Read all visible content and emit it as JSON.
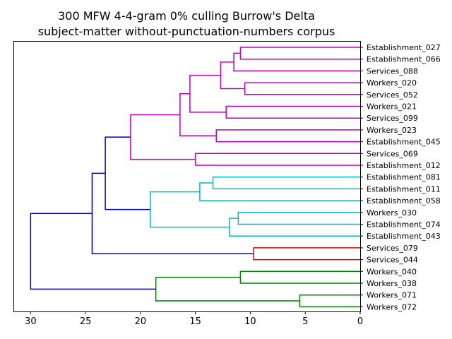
{
  "chart_data": {
    "type": "dendrogram",
    "title": "300 MFW 4-4-gram 0% culling Burrow's Delta",
    "subtitle": "subject-matter without-punctuation-numbers corpus",
    "xlim": [
      31.5,
      0
    ],
    "xticks": [
      30,
      25,
      20,
      15,
      10,
      5,
      0
    ],
    "leaves": [
      "Establishment_027",
      "Establishment_066",
      "Services_088",
      "Workers_020",
      "Services_052",
      "Workers_021",
      "Services_099",
      "Workers_023",
      "Establishment_045",
      "Services_069",
      "Establishment_012",
      "Establishment_081",
      "Establishment_011",
      "Establishment_058",
      "Workers_030",
      "Establishment_074",
      "Establishment_043",
      "Services_079",
      "Services_044",
      "Workers_040",
      "Workers_038",
      "Workers_071",
      "Workers_072"
    ],
    "colors": {
      "magenta": "#bf00bf",
      "cyan": "#00bfbf",
      "red": "#e00000",
      "green": "#008000",
      "blue": "#0000cc"
    },
    "merges": [
      {
        "a": "L0",
        "b": "L1",
        "height": 10.9,
        "color": "magenta"
      },
      {
        "a": "M0",
        "b": "L2",
        "height": 11.5,
        "color": "magenta"
      },
      {
        "a": "L3",
        "b": "L4",
        "height": 10.5,
        "color": "magenta"
      },
      {
        "a": "M1",
        "b": "M2",
        "height": 12.7,
        "color": "magenta"
      },
      {
        "a": "L5",
        "b": "L6",
        "height": 12.2,
        "color": "magenta"
      },
      {
        "a": "M3",
        "b": "M4",
        "height": 15.5,
        "color": "magenta"
      },
      {
        "a": "L7",
        "b": "L8",
        "height": 13.1,
        "color": "magenta"
      },
      {
        "a": "M5",
        "b": "M6",
        "height": 16.4,
        "color": "magenta"
      },
      {
        "a": "L9",
        "b": "L10",
        "height": 15.0,
        "color": "magenta"
      },
      {
        "a": "M7",
        "b": "M8",
        "height": 20.9,
        "color": "magenta"
      },
      {
        "a": "L11",
        "b": "L12",
        "height": 13.4,
        "color": "cyan"
      },
      {
        "a": "M10",
        "b": "L13",
        "height": 14.6,
        "color": "cyan"
      },
      {
        "a": "L14",
        "b": "L15",
        "height": 11.1,
        "color": "cyan"
      },
      {
        "a": "M12",
        "b": "L16",
        "height": 11.9,
        "color": "cyan"
      },
      {
        "a": "M11",
        "b": "M13",
        "height": 19.1,
        "color": "cyan"
      },
      {
        "a": "M9",
        "b": "M14",
        "height": 23.2,
        "color": "blue"
      },
      {
        "a": "L17",
        "b": "L18",
        "height": 9.7,
        "color": "red"
      },
      {
        "a": "M15",
        "b": "M16",
        "height": 24.4,
        "color": "blue"
      },
      {
        "a": "L19",
        "b": "L20",
        "height": 10.9,
        "color": "green"
      },
      {
        "a": "L21",
        "b": "L22",
        "height": 5.5,
        "color": "green"
      },
      {
        "a": "M18",
        "b": "M19",
        "height": 18.6,
        "color": "green"
      },
      {
        "a": "M17",
        "b": "M20",
        "height": 30.0,
        "color": "blue"
      }
    ]
  }
}
